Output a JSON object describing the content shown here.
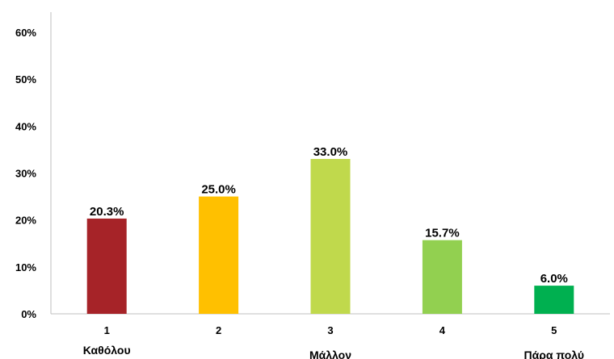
{
  "chart_data": {
    "type": "bar",
    "categories": [
      "1",
      "2",
      "3",
      "4",
      "5"
    ],
    "category_sublabels": [
      "Καθόλου",
      "",
      "Μάλλον",
      "",
      "Πάρα πολύ"
    ],
    "values": [
      20.3,
      25.0,
      33.0,
      15.7,
      6.0
    ],
    "data_labels": [
      "20.3%",
      "25.0%",
      "33.0%",
      "15.7%",
      "6.0%"
    ],
    "colors": [
      "#a62328",
      "#ffc000",
      "#c0d94c",
      "#92d050",
      "#00b050"
    ],
    "ylim": [
      0,
      60
    ],
    "yticks": [
      0,
      10,
      20,
      30,
      40,
      50,
      60
    ],
    "ytick_labels": [
      "0%",
      "10%",
      "20%",
      "30%",
      "40%",
      "50%",
      "60%"
    ],
    "grid": false,
    "legend": "none"
  }
}
